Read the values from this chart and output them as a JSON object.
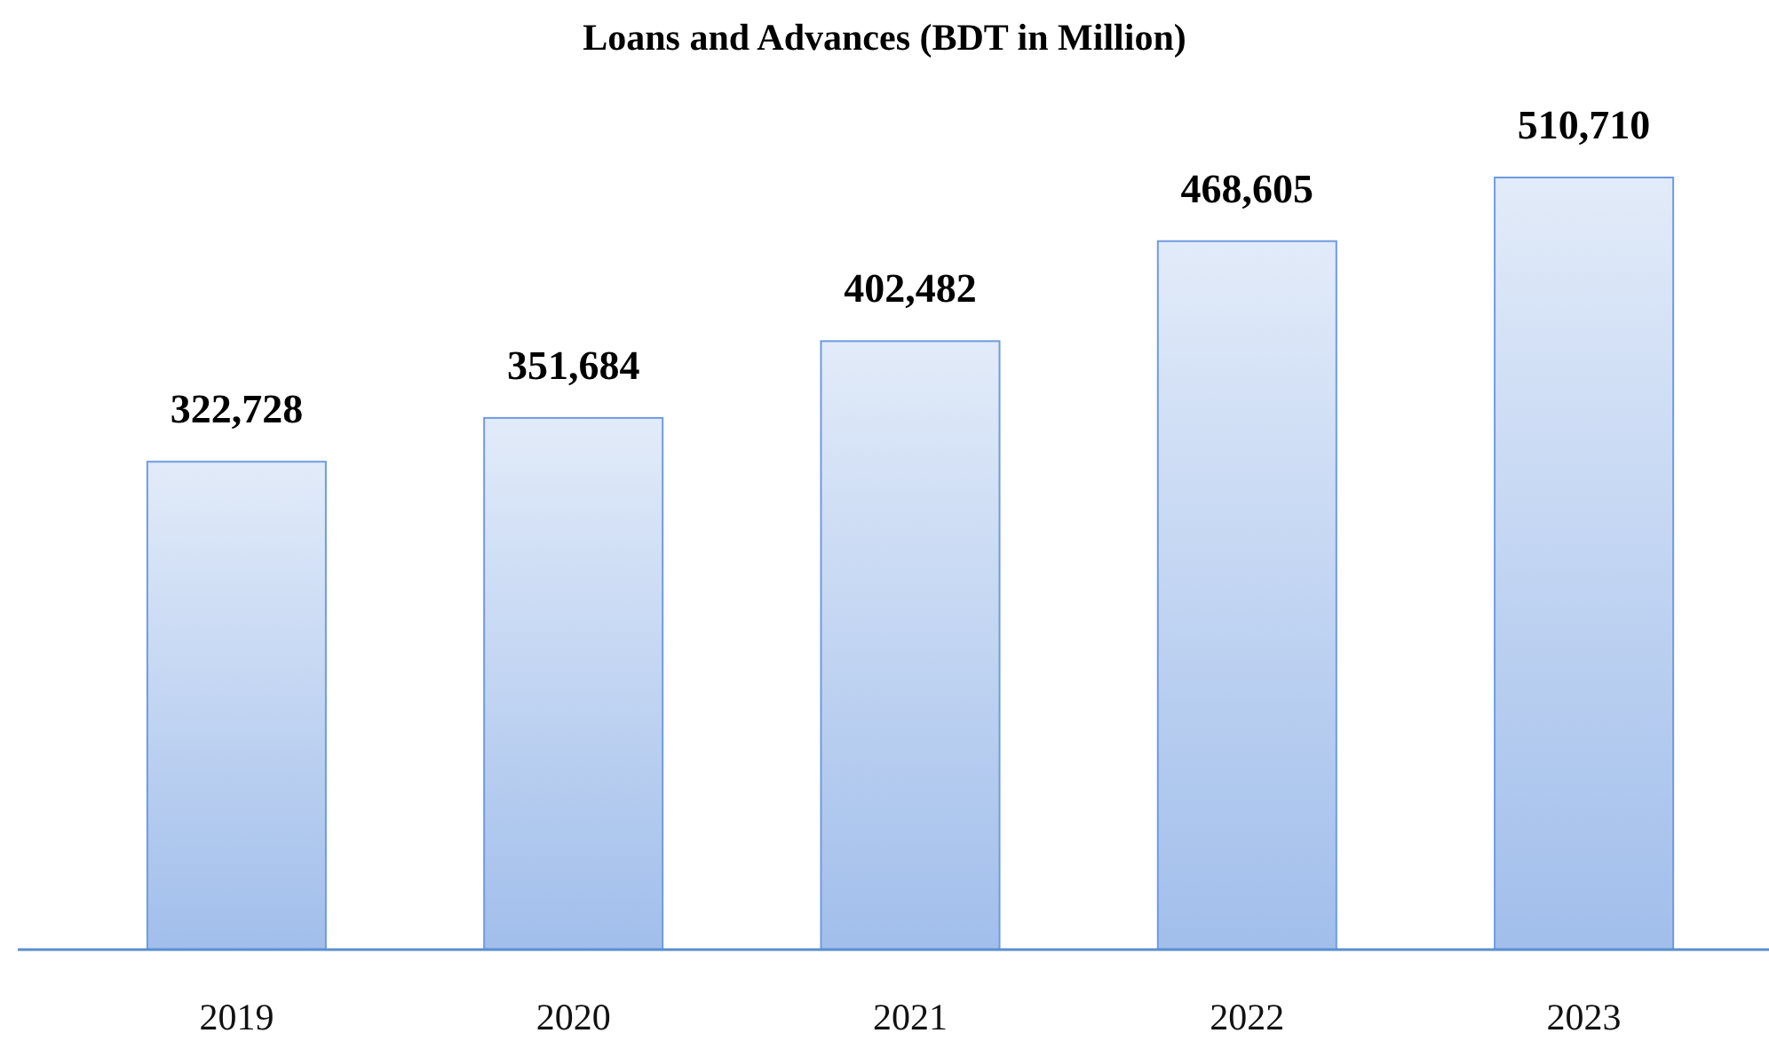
{
  "chart_data": {
    "type": "bar",
    "title": "Loans and Advances (BDT in Million)",
    "categories": [
      "2019",
      "2020",
      "2021",
      "2022",
      "2023"
    ],
    "values": [
      322728,
      351684,
      402482,
      468605,
      510710
    ],
    "value_labels": [
      "322,728",
      "351,684",
      "402,482",
      "468,605",
      "510,710"
    ],
    "color": "#6f9be0",
    "tick_labels": "x"
  }
}
